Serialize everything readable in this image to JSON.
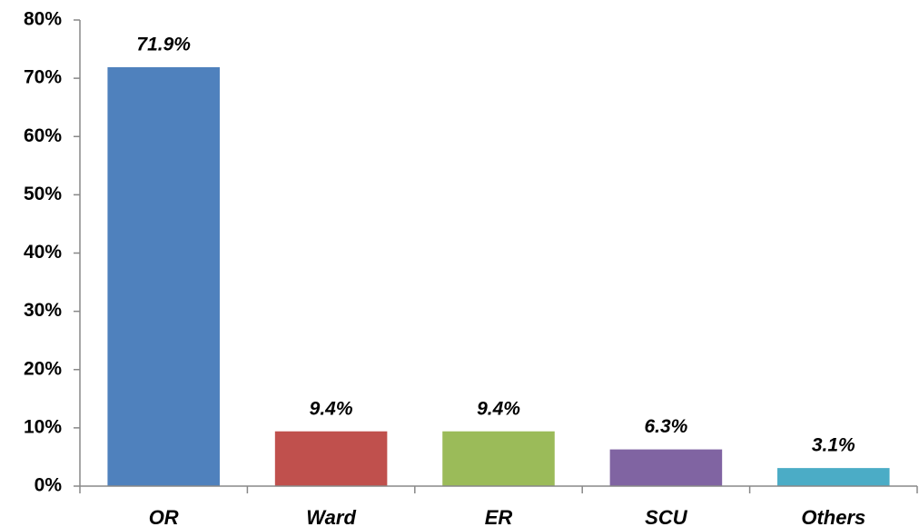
{
  "chart_data": {
    "type": "bar",
    "categories": [
      "OR",
      "Ward",
      "ER",
      "SCU",
      "Others"
    ],
    "values": [
      71.9,
      9.4,
      9.4,
      6.3,
      3.1
    ],
    "value_labels": [
      "71.9%",
      "9.4%",
      "9.4%",
      "6.3%",
      "3.1%"
    ],
    "colors": [
      "#4f81bd",
      "#c0504d",
      "#9bbb59",
      "#8064a2",
      "#4bacc6"
    ],
    "ylim": [
      0,
      80
    ],
    "yticks": [
      {
        "value": 0,
        "label": "0%"
      },
      {
        "value": 10,
        "label": "10%"
      },
      {
        "value": 20,
        "label": "20%"
      },
      {
        "value": 30,
        "label": "30%"
      },
      {
        "value": 40,
        "label": "40%"
      },
      {
        "value": 50,
        "label": "50%"
      },
      {
        "value": 60,
        "label": "60%"
      },
      {
        "value": 70,
        "label": "70%"
      },
      {
        "value": 80,
        "label": "80%"
      }
    ],
    "grid": false
  }
}
